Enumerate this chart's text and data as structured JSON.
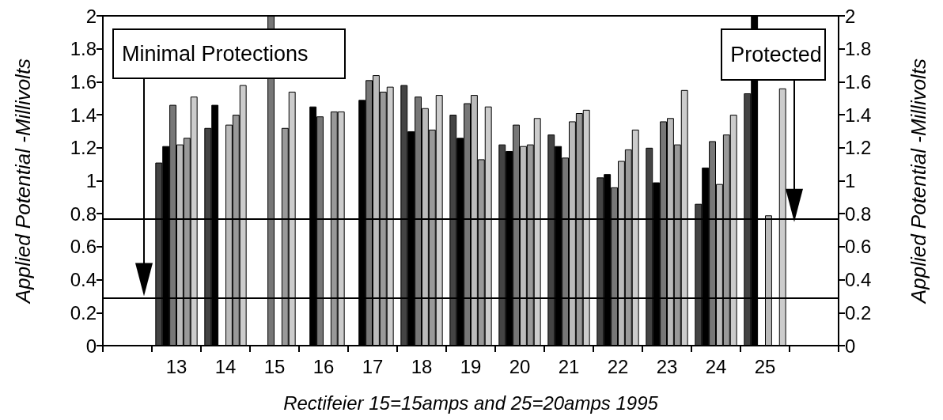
{
  "chart_data": {
    "type": "bar",
    "xlabel": "Rectifeier 15=15amps and 25=20amps 1995",
    "ylabel": "Applied Potential -Millivolts",
    "y2label": "Applied Potential -Millivolts",
    "categories": [
      null,
      "13",
      "14",
      "15",
      "16",
      "17",
      "18",
      "19",
      "20",
      "21",
      "22",
      "23",
      "24",
      "25",
      null
    ],
    "series": [
      {
        "color": "#444444",
        "values": [
          null,
          1.11,
          1.32,
          null,
          null,
          null,
          1.58,
          1.4,
          1.22,
          1.28,
          1.02,
          1.2,
          0.86,
          1.53,
          null
        ]
      },
      {
        "color": "#000000",
        "values": [
          null,
          1.21,
          1.46,
          null,
          1.45,
          1.49,
          1.3,
          1.26,
          1.18,
          1.21,
          1.04,
          0.99,
          1.08,
          2,
          null
        ]
      },
      {
        "color": "#777777",
        "values": [
          null,
          1.46,
          null,
          2,
          1.39,
          1.61,
          1.51,
          1.47,
          1.34,
          1.14,
          0.96,
          1.36,
          1.24,
          null,
          null
        ]
      },
      {
        "color": "#bbbbbb",
        "values": [
          null,
          1.22,
          1.34,
          null,
          null,
          1.64,
          1.44,
          1.52,
          1.21,
          1.36,
          1.12,
          1.38,
          0.98,
          0.79,
          null
        ]
      },
      {
        "color": "#999999",
        "values": [
          null,
          1.26,
          1.4,
          1.32,
          1.42,
          1.54,
          1.31,
          1.13,
          1.22,
          1.41,
          1.19,
          1.22,
          1.28,
          null,
          null
        ]
      },
      {
        "color": "#cccccc",
        "values": [
          null,
          1.51,
          1.58,
          1.54,
          1.42,
          1.57,
          1.52,
          1.45,
          1.38,
          1.43,
          1.31,
          1.55,
          1.4,
          1.56,
          null
        ]
      }
    ],
    "ylim": [
      0,
      2
    ],
    "yticks": [
      0,
      0.2,
      0.4,
      0.6,
      0.8,
      1,
      1.2,
      1.4,
      1.6,
      1.8,
      2
    ],
    "y2lim": [
      0,
      2
    ],
    "y2ticks": [
      0,
      0.2,
      0.4,
      0.6,
      0.8,
      1,
      1.2,
      1.4,
      1.6,
      1.8,
      2
    ],
    "ref_lines": [
      {
        "axis": "y",
        "value": 0.77,
        "color": "#000000"
      },
      {
        "axis": "y",
        "value": 0.29,
        "color": "#000000"
      }
    ],
    "annotations": [
      "Minimal Protections",
      "Protected"
    ],
    "grid": false,
    "legend": false
  }
}
